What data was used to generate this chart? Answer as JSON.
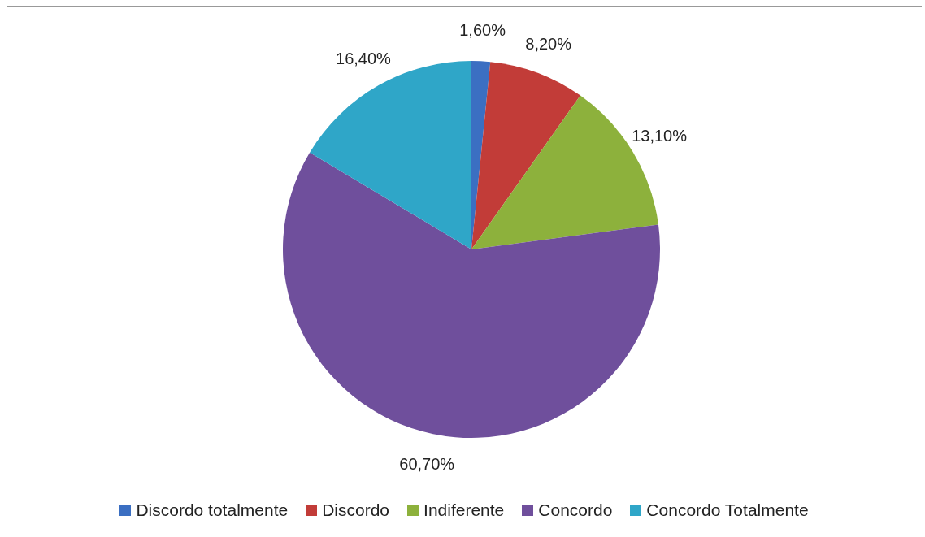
{
  "chart_data": {
    "type": "pie",
    "categories": [
      "Discordo totalmente",
      "Discordo",
      "Indiferente",
      "Concordo",
      "Concordo Totalmente"
    ],
    "values": [
      1.6,
      8.2,
      13.1,
      60.7,
      16.4
    ],
    "colors": [
      "#3b6fc2",
      "#c23c38",
      "#8db13c",
      "#6f4f9c",
      "#2fa6c8"
    ],
    "value_labels": [
      "1,60%",
      "8,20%",
      "13,10%",
      "60,70%",
      "16,40%"
    ],
    "legend": "bottom"
  }
}
